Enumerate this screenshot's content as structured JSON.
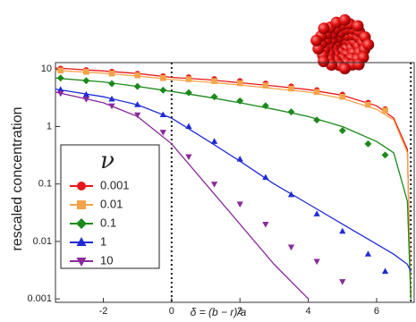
{
  "chart_data": {
    "type": "scatter",
    "y_label": "rescaled concentration",
    "x_label": "δ = (b − r)/a",
    "legend_title": "ν",
    "log_y": true,
    "xlim": [
      -3.4,
      7.1
    ],
    "ylim": [
      0.00087,
      13
    ],
    "xticks": [
      -2,
      0,
      2,
      4,
      6
    ],
    "yticks": [
      10,
      1,
      0.1,
      0.01,
      0.001
    ],
    "vlines": [
      0,
      7
    ],
    "x": [
      -3.25,
      -2.5,
      -1.75,
      -1,
      -0.25,
      0.5,
      1.25,
      2,
      2.75,
      3.5,
      4.25,
      5,
      5.75,
      6.25
    ],
    "curve_x": [
      -3.4,
      -2,
      -1,
      0,
      1,
      2,
      3,
      4,
      5,
      6,
      6.5,
      6.9,
      7
    ],
    "series": [
      {
        "name": "0.001",
        "color": "#e8161b",
        "marker": "circle",
        "values": [
          10.2,
          9.6,
          9,
          8.3,
          7.5,
          7.2,
          6.7,
          6.2,
          5.6,
          5,
          4.3,
          3.6,
          2.6,
          2
        ],
        "curve_values": [
          10.5,
          9.3,
          8.4,
          7.2,
          6.6,
          5.8,
          5.1,
          4.4,
          3.5,
          2.3,
          1.4,
          0.4,
          0.001
        ]
      },
      {
        "name": "0.01",
        "color": "#f5a34a",
        "marker": "square",
        "values": [
          9.5,
          9,
          8.4,
          7.8,
          7,
          6.7,
          6.2,
          5.7,
          5.2,
          4.6,
          4,
          3.3,
          2.4,
          1.9
        ],
        "curve_values": [
          9.5,
          8.5,
          7.6,
          6.6,
          6,
          5.3,
          4.6,
          4,
          3.1,
          2,
          1.3,
          0.35,
          0.001
        ]
      },
      {
        "name": "0.1",
        "color": "#1a8a1a",
        "marker": "diamond",
        "values": [
          7,
          6.3,
          5.6,
          5,
          4.3,
          3.9,
          3.3,
          2.8,
          2.3,
          1.8,
          1.3,
          0.85,
          0.5,
          0.32
        ],
        "curve_values": [
          7,
          6,
          5,
          4.1,
          3.3,
          2.6,
          2,
          1.5,
          1,
          0.55,
          0.35,
          0.05,
          0.001
        ]
      },
      {
        "name": "1",
        "color": "#1f2bd6",
        "marker": "triangle",
        "values": [
          4.4,
          3.6,
          3,
          2.4,
          1.6,
          1,
          0.55,
          0.27,
          0.13,
          0.065,
          0.03,
          0.015,
          0.006,
          0.003
        ],
        "curve_values": [
          4.5,
          3.3,
          2.4,
          1.4,
          0.6,
          0.25,
          0.1,
          0.045,
          0.02,
          0.009,
          0.006,
          0.004,
          0.003
        ]
      },
      {
        "name": "10",
        "color": "#8a2a9c",
        "marker": "triangle-down",
        "values": [
          3.8,
          3,
          2.3,
          1.6,
          0.8,
          0.3,
          0.1,
          0.045,
          0.02,
          0.008,
          0.0045,
          0.002,
          null,
          null
        ],
        "curve_values": [
          4,
          2.6,
          1.5,
          0.5,
          0.1,
          0.02,
          0.004,
          0.001,
          null,
          null,
          null,
          null,
          null
        ]
      }
    ]
  }
}
